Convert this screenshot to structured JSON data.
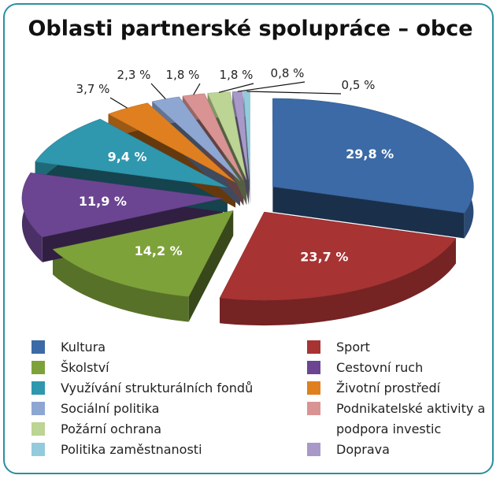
{
  "chart_data": {
    "type": "pie",
    "title": "Oblasti partnerské spolupráce – obce",
    "categories": [
      "Kultura",
      "Sport",
      "Školství",
      "Cestovní ruch",
      "Využívání strukturálních fondů",
      "Životní prostředí",
      "Sociální politika",
      "Podnikatelské aktivity a podpora investic",
      "Požární ochrana",
      "Doprava",
      "Politika zaměstnanosti"
    ],
    "values": [
      29.8,
      23.7,
      14.2,
      11.9,
      9.4,
      3.7,
      2.3,
      1.8,
      1.8,
      0.8,
      0.5
    ],
    "value_labels": [
      "29,8 %",
      "23,7 %",
      "14,2 %",
      "11,9 %",
      "9,4 %",
      "3,7 %",
      "2,3 %",
      "1,8 %",
      "1,8 %",
      "0,8 %",
      "0,5 %"
    ],
    "colors": [
      "#3b6aa6",
      "#a83333",
      "#7ea23a",
      "#6b4592",
      "#2f97ae",
      "#e07f1f",
      "#8ea6d2",
      "#d99393",
      "#bcd494",
      "#a899c9",
      "#93cbdc"
    ]
  }
}
